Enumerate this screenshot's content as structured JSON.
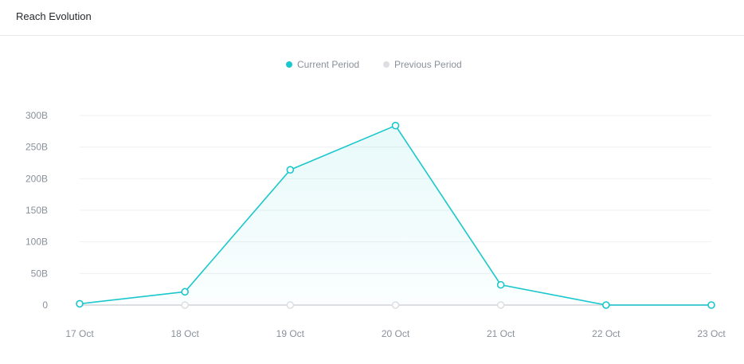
{
  "header": {
    "title": "Reach Evolution"
  },
  "colors": {
    "current": "#19c7cc",
    "previous": "#dcdee2",
    "grid": "#eef0f2",
    "axis_text": "#8a909a"
  },
  "chart_data": {
    "type": "line",
    "categories": [
      "17 Oct",
      "18 Oct",
      "19 Oct",
      "20 Oct",
      "21 Oct",
      "22 Oct",
      "23 Oct"
    ],
    "series": [
      {
        "name": "Current Period",
        "values": [
          2,
          21,
          214,
          284,
          32,
          0,
          0
        ]
      },
      {
        "name": "Previous Period",
        "values": [
          0,
          0,
          0,
          0,
          0,
          0,
          0
        ]
      }
    ],
    "y_ticks": [
      "0",
      "50B",
      "100B",
      "150B",
      "200B",
      "250B",
      "300B"
    ],
    "y_tick_values": [
      0,
      50,
      100,
      150,
      200,
      250,
      300
    ],
    "ylim": [
      0,
      300
    ],
    "y_unit": "B",
    "grid": true,
    "legend_position": "top-center"
  }
}
